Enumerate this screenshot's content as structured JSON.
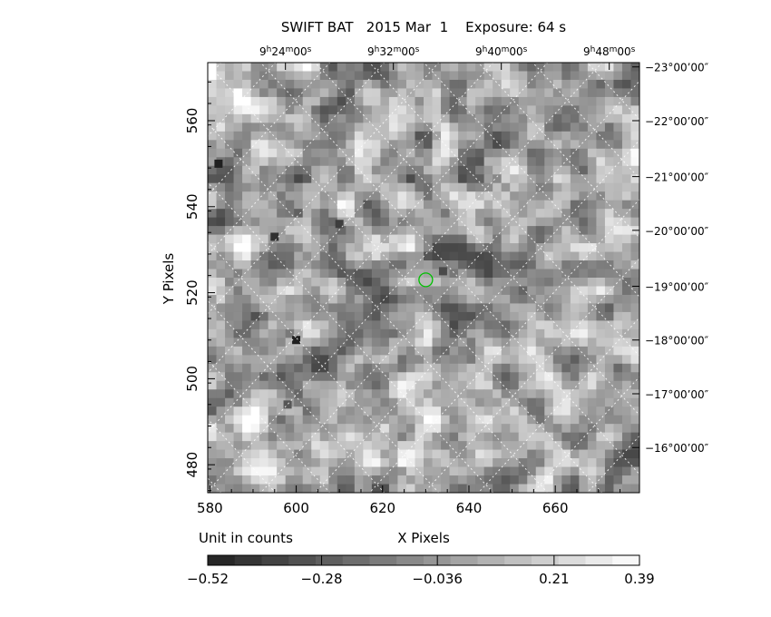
{
  "chart_data": {
    "type": "heatmap",
    "title": "SWIFT BAT   2015 Mar  1    Exposure: 64 s",
    "xlabel": "X Pixels",
    "ylabel": "Y Pixels",
    "unit_label": "Unit in counts",
    "xlim": [
      579.5,
      679.5
    ],
    "ylim": [
      473.5,
      573.5
    ],
    "x_ticks": [
      580,
      600,
      620,
      640,
      660
    ],
    "y_ticks": [
      480,
      500,
      520,
      540,
      560
    ],
    "ra_ticks": [
      {
        "x": 597.5,
        "h": "9",
        "m": "24",
        "s": "00"
      },
      {
        "x": 622.5,
        "h": "9",
        "m": "32",
        "s": "00"
      },
      {
        "x": 647.5,
        "h": "9",
        "m": "40",
        "s": "00"
      },
      {
        "x": 672.5,
        "h": "9",
        "m": "48",
        "s": "00"
      }
    ],
    "dec_ticks": [
      {
        "y": 572.5,
        "label": "−23°00’00″"
      },
      {
        "y": 560.0,
        "label": "−22°00’00″"
      },
      {
        "y": 547.0,
        "label": "−21°00’00″"
      },
      {
        "y": 534.5,
        "label": "−20°00’00″"
      },
      {
        "y": 521.5,
        "label": "−19°00’00″"
      },
      {
        "y": 509.0,
        "label": "−18°00’00″"
      },
      {
        "y": 496.5,
        "label": "−17°00’00″"
      },
      {
        "y": 484.0,
        "label": "−16°00’00″"
      }
    ],
    "colorbar": {
      "min": -0.52,
      "max": 0.39,
      "tick_labels": [
        "−0.52",
        "−0.28",
        "−0.036",
        "0.21",
        "0.39"
      ],
      "tick_values": [
        -0.52,
        -0.28,
        -0.036,
        0.21,
        0.39
      ],
      "steps": 16
    },
    "marker": {
      "x": 630,
      "y": 523,
      "color": "#00c000",
      "shape": "circle"
    },
    "bright_sources": [
      {
        "x": 582,
        "y": 550,
        "value": -0.52
      },
      {
        "x": 595,
        "y": 533,
        "value": -0.45
      },
      {
        "x": 600,
        "y": 509,
        "value": -0.52
      },
      {
        "x": 610,
        "y": 536,
        "value": -0.4
      },
      {
        "x": 634,
        "y": 525,
        "value": -0.35
      },
      {
        "x": 598,
        "y": 494,
        "value": -0.3
      }
    ],
    "grid": true,
    "colormap": "gray"
  }
}
